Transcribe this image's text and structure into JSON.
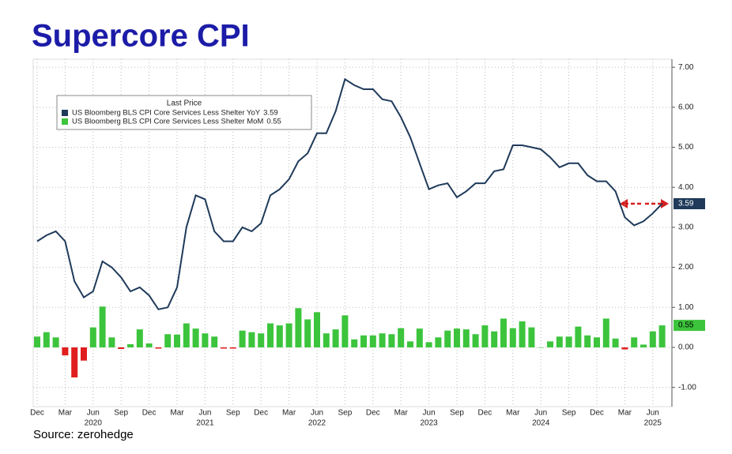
{
  "chart_data": {
    "type": "line_bar",
    "title": "Supercore CPI",
    "source": "Source: zerohedge",
    "legend_title": "Last Price",
    "categories": [
      "Dec",
      null,
      null,
      "Mar",
      null,
      null,
      "Jun",
      null,
      null,
      "Sep",
      null,
      null,
      "Dec",
      null,
      null,
      "Mar",
      null,
      null,
      "Jun",
      null,
      null,
      "Sep",
      null,
      null,
      "Dec",
      null,
      null,
      "Mar",
      null,
      null,
      "Jun",
      null,
      null,
      "Sep",
      null,
      null,
      "Dec",
      null,
      null,
      "Mar",
      null,
      null,
      "Jun",
      null,
      null,
      "Sep",
      null,
      null,
      "Dec",
      null,
      null,
      "Mar",
      null,
      null,
      "Jun",
      null,
      null,
      "Sep",
      null,
      null,
      "Dec",
      null,
      null,
      "Mar",
      null,
      null,
      "Jun",
      null
    ],
    "category_years": [
      null,
      null,
      null,
      null,
      null,
      null,
      "2020",
      null,
      null,
      null,
      null,
      null,
      null,
      null,
      null,
      null,
      null,
      null,
      "2021",
      null,
      null,
      null,
      null,
      null,
      null,
      null,
      null,
      null,
      null,
      null,
      "2022",
      null,
      null,
      null,
      null,
      null,
      null,
      null,
      null,
      null,
      null,
      null,
      "2023",
      null,
      null,
      null,
      null,
      null,
      null,
      null,
      null,
      null,
      null,
      null,
      "2024",
      null,
      null,
      null,
      null,
      null,
      null,
      null,
      null,
      null,
      null,
      null,
      "2025",
      null
    ],
    "series": [
      {
        "name": "US Bloomberg BLS CPI Core Services Less Shelter YoY",
        "kind": "line",
        "color": "#1f3a5a",
        "values": [
          2.65,
          2.8,
          2.9,
          2.65,
          1.65,
          1.25,
          1.4,
          2.15,
          2.0,
          1.75,
          1.4,
          1.5,
          1.3,
          0.95,
          1.0,
          1.5,
          3.0,
          3.8,
          3.7,
          2.9,
          2.65,
          2.65,
          3.0,
          2.9,
          3.1,
          3.8,
          3.95,
          4.2,
          4.65,
          4.85,
          5.35,
          5.35,
          5.9,
          6.7,
          6.55,
          6.45,
          6.45,
          6.2,
          6.15,
          5.75,
          5.25,
          4.6,
          3.95,
          4.05,
          4.1,
          3.75,
          3.9,
          4.1,
          4.1,
          4.4,
          4.45,
          5.05,
          5.05,
          5.0,
          4.95,
          4.75,
          4.5,
          4.6,
          4.6,
          4.3,
          4.15,
          4.15,
          3.9,
          3.25,
          3.05,
          3.15,
          3.35,
          3.59
        ]
      },
      {
        "name": "US Bloomberg BLS CPI Core Services Less Shelter MoM",
        "kind": "bar",
        "color": "#3cc43c",
        "negative_color": "#e01e1e",
        "values": [
          0.27,
          0.38,
          0.25,
          -0.2,
          -0.75,
          -0.33,
          0.5,
          1.02,
          0.25,
          -0.04,
          0.08,
          0.45,
          0.1,
          -0.03,
          0.33,
          0.32,
          0.6,
          0.47,
          0.35,
          0.27,
          -0.03,
          -0.03,
          0.42,
          0.38,
          0.35,
          0.6,
          0.55,
          0.6,
          0.98,
          0.7,
          0.88,
          0.35,
          0.45,
          0.8,
          0.2,
          0.3,
          0.3,
          0.35,
          0.33,
          0.48,
          0.15,
          0.47,
          0.13,
          0.25,
          0.42,
          0.47,
          0.45,
          0.33,
          0.55,
          0.4,
          0.72,
          0.48,
          0.65,
          0.5,
          0.0,
          0.15,
          0.27,
          0.27,
          0.52,
          0.3,
          0.25,
          0.72,
          0.22,
          -0.05,
          0.25,
          0.07,
          0.4,
          0.55
        ]
      }
    ],
    "ylim": [
      -1.48,
      7.2
    ],
    "yticks": [
      {
        "value": 7,
        "label": "7.00"
      },
      {
        "value": 6,
        "label": "6.00"
      },
      {
        "value": 5,
        "label": "5.00"
      },
      {
        "value": 4,
        "label": "4.00"
      },
      {
        "value": 3,
        "label": "3.00"
      },
      {
        "value": 2,
        "label": "2.00"
      },
      {
        "value": 1,
        "label": "1.00"
      },
      {
        "value": 0,
        "label": "0.00"
      },
      {
        "value": -1,
        "label": "-1.00"
      }
    ],
    "grid": true
  }
}
